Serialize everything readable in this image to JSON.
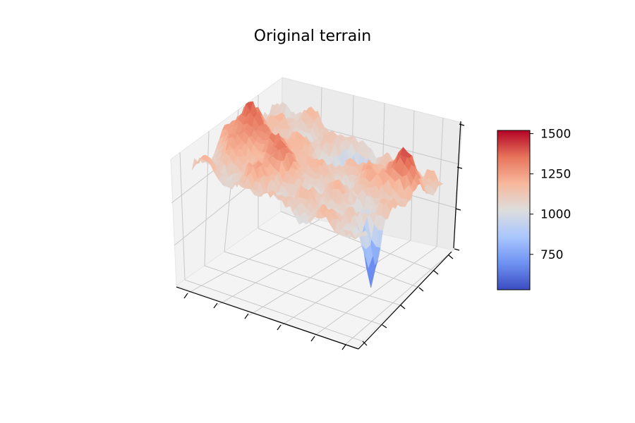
{
  "chart_data": {
    "type": "surface3d",
    "title": "Original terrain",
    "xlabel": "",
    "ylabel": "",
    "zlabel": "",
    "colormap": "coolwarm",
    "colormap_stops": [
      "#3b4cc0",
      "#6f92f3",
      "#aac7fd",
      "#dddddd",
      "#f7b89c",
      "#e7745b",
      "#b40426"
    ],
    "z_range": [
      530,
      1520
    ],
    "colorbar": {
      "ticks": [
        750,
        1000,
        1250,
        1500
      ],
      "tick_labels": [
        "750",
        "1000",
        "1250",
        "1500"
      ]
    },
    "axis_tick_labels_visible": false,
    "grid": true,
    "surface_shape": [
      "ridges and peaks reaching ~1500 at back-left and back-right",
      "deep depression ~550 near front-right"
    ]
  }
}
